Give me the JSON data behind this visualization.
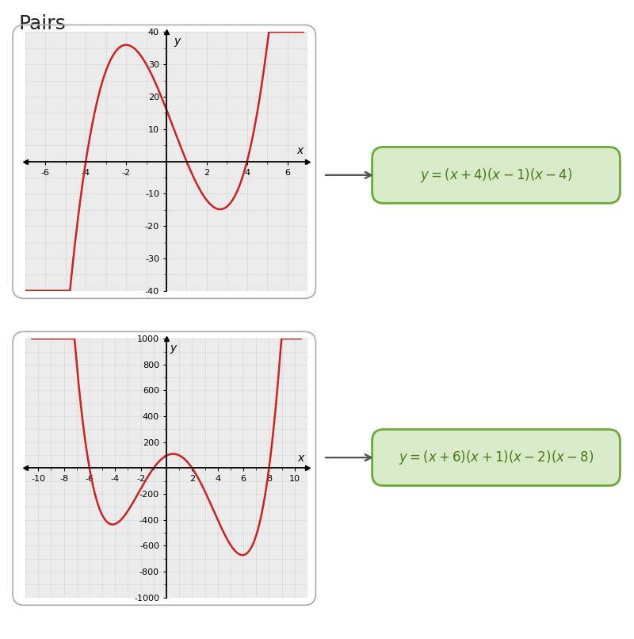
{
  "title": "Pairs",
  "panel1": {
    "xlim": [
      -7,
      7
    ],
    "ylim": [
      -40,
      40
    ],
    "xticks": [
      -6,
      -4,
      -2,
      2,
      4,
      6
    ],
    "yticks": [
      -40,
      -30,
      -20,
      -10,
      10,
      20,
      30,
      40
    ],
    "curve_color": "#cc2222",
    "bg_color": "#ebebeb",
    "grid_color": "#cccccc"
  },
  "panel2": {
    "xlim": [
      -11,
      11
    ],
    "ylim": [
      -1000,
      1000
    ],
    "xticks": [
      -10,
      -8,
      -6,
      -4,
      -2,
      2,
      4,
      6,
      8,
      10
    ],
    "yticks": [
      -1000,
      -800,
      -600,
      -400,
      -200,
      200,
      400,
      600,
      800,
      1000
    ],
    "curve_color": "#cc2222",
    "bg_color": "#ebebeb",
    "grid_color": "#cccccc"
  },
  "box_facecolor": "#d9eac8",
  "box_edgecolor": "#6aaa3a",
  "eq_text_color": "#4a7a1a",
  "page_bg": "#ffffff",
  "title_fontsize": 18,
  "eq_fontsize": 12,
  "axis_label_fontsize": 10,
  "tick_fontsize": 8
}
